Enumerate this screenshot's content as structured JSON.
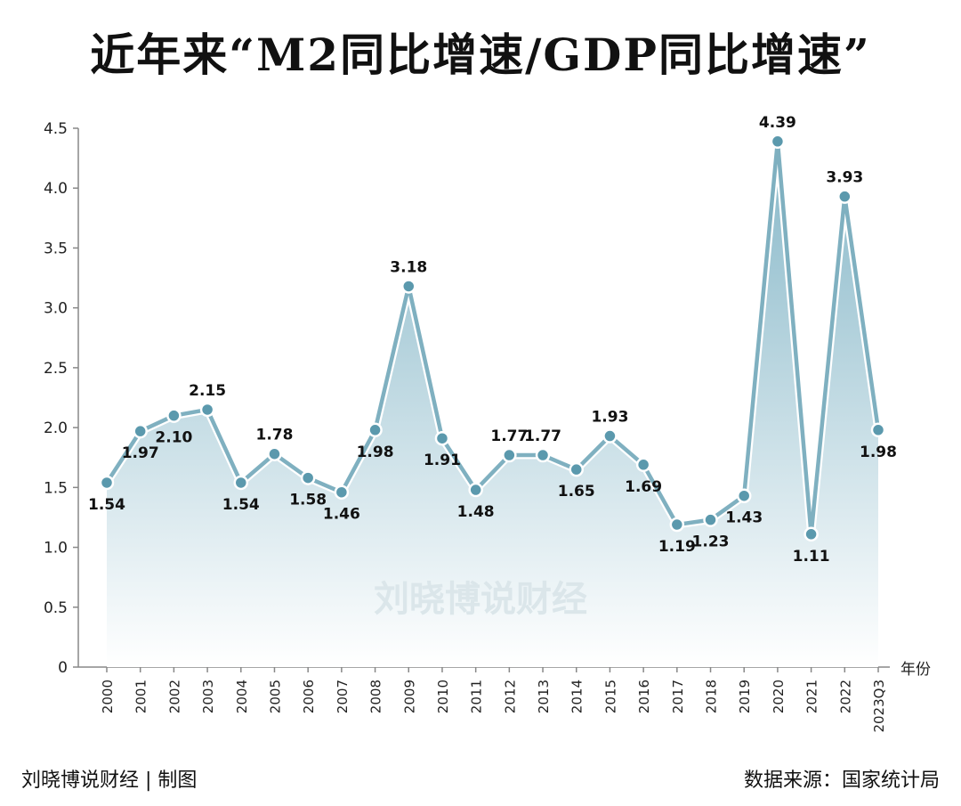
{
  "title": "近年来“M2同比增速/GDP同比增速”",
  "footer": {
    "credit": "刘晓博说财经 | 制图",
    "source": "数据来源：国家统计局"
  },
  "watermark": "刘晓博说财经",
  "colors": {
    "line": "#7fb0c0",
    "marker_fill": "#5b99ad",
    "area_top": "#86b7c8",
    "area_bottom": "#ffffff"
  },
  "chart_data": {
    "type": "area",
    "title": "近年来“M2同比增速/GDP同比增速”",
    "xlabel": "年份",
    "ylabel": "",
    "ylim": [
      0,
      4.5
    ],
    "yticks": [
      "0",
      "0.5",
      "1.0",
      "1.5",
      "2.0",
      "2.5",
      "3.0",
      "3.5",
      "4.0",
      "4.5"
    ],
    "grid": false,
    "categories": [
      "2000",
      "2001",
      "2002",
      "2003",
      "2004",
      "2005",
      "2006",
      "2007",
      "2008",
      "2009",
      "2010",
      "2011",
      "2012",
      "2013",
      "2014",
      "2015",
      "2016",
      "2017",
      "2018",
      "2019",
      "2020",
      "2021",
      "2022",
      "2023Q3"
    ],
    "values": [
      1.54,
      1.97,
      2.1,
      2.15,
      1.54,
      1.78,
      1.58,
      1.46,
      1.98,
      3.18,
      1.91,
      1.48,
      1.77,
      1.77,
      1.65,
      1.93,
      1.69,
      1.19,
      1.23,
      1.43,
      4.39,
      1.11,
      3.93,
      1.98
    ],
    "data_labels": [
      "1.54",
      "1.97",
      "2.10",
      "2.15",
      "1.54",
      "1.78",
      "1.58",
      "1.46",
      "1.98",
      "3.18",
      "1.91",
      "1.48",
      "1.77",
      "1.77",
      "1.65",
      "1.93",
      "1.69",
      "1.19",
      "1.23",
      "1.43",
      "4.39",
      "1.11",
      "3.93",
      "1.98"
    ]
  }
}
